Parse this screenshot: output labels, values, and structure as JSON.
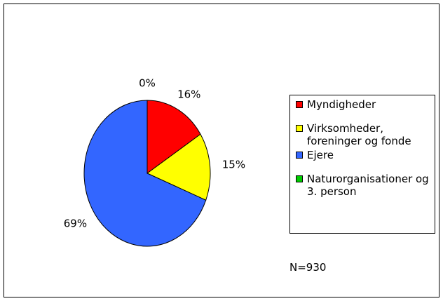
{
  "chart_data": {
    "type": "pie",
    "categories": [
      "Myndigheder",
      "Virksomheder, foreninger og fonde",
      "Ejere",
      "Naturorganisationer og 3. person"
    ],
    "values": [
      16,
      15,
      69,
      0
    ],
    "value_labels": [
      "16%",
      "15%",
      "69%",
      "0%"
    ],
    "colors": [
      "#ff0000",
      "#ffff00",
      "#3366ff",
      "#00cc00"
    ],
    "annotation": "N=930"
  }
}
